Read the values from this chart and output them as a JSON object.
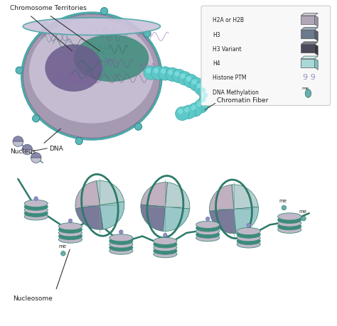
{
  "background_color": "#ffffff",
  "labels": {
    "chromosome_territories": "Chromosome Territories",
    "nucleus": "Nucleus",
    "chromatin_fiber": "Chromatin Fiber",
    "dna": "DNA",
    "nucleosome": "Nucleosome"
  },
  "legend": {
    "items": [
      {
        "label": "H2A or H2B",
        "face": "#b0a8b9",
        "side": "#9a92a5",
        "top": "#d0ccd8"
      },
      {
        "label": "H3",
        "face": "#6b7a8d",
        "side": "#555f6d",
        "top": "#9aacb8"
      },
      {
        "label": "H3 Variant",
        "face": "#4a4a5a",
        "side": "#363640",
        "top": "#7a7a8a"
      },
      {
        "label": "H4",
        "face": "#a8d8d8",
        "side": "#82bfbf",
        "top": "#c8eeee"
      },
      {
        "label": "Histone PTM",
        "face": null,
        "side": null,
        "top": null
      },
      {
        "label": "DNA Methylation",
        "face": null,
        "side": null,
        "top": null
      }
    ]
  },
  "colors": {
    "nucleus_outer": "#9b8faa",
    "nucleus_inner": "#c8bfd4",
    "chromosome_green": "#3d8b7a",
    "chromosome_purple": "#6b5b8c",
    "chromatin_bead": "#5ec8c8",
    "dna_strand": "#2d7a6a",
    "nucleosome_band": "#3d8b7a",
    "nucleosome_disk_light": "#c0b8c8",
    "annotation_line": "#333333",
    "text_color": "#222222",
    "ptm_color": "#9090c0",
    "methylation_color": "#6aafaf",
    "legend_box_bg": "#f8f8f8",
    "legend_box_border": "#cccccc"
  }
}
